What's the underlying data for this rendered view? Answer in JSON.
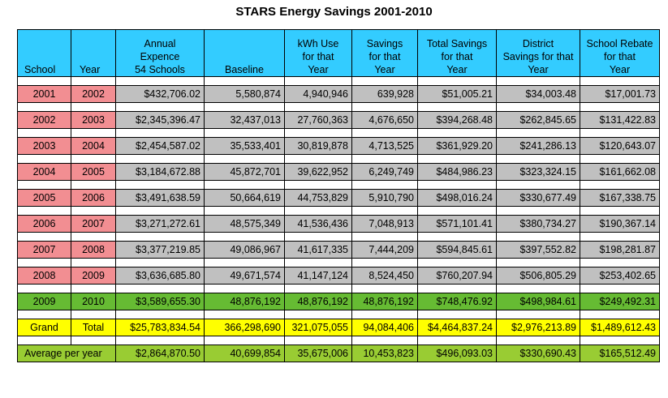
{
  "title": "STARS Energy Savings 2001-2010",
  "headers": {
    "school": "School",
    "year": "Year",
    "annual": [
      "Annual",
      "Expence",
      "54 Schools"
    ],
    "baseline": "Baseline",
    "kwh": [
      "kWh Use",
      "for that",
      "Year"
    ],
    "savings": [
      "Savings",
      "for that",
      "Year"
    ],
    "total": [
      "Total Savings",
      "for that",
      "Year"
    ],
    "district": [
      "District",
      "Savings for that",
      "Year"
    ],
    "rebate": [
      "School Rebate",
      "for that",
      "Year"
    ]
  },
  "rows": [
    {
      "school": "2001",
      "year": "2002",
      "annual": "$432,706.02",
      "baseline": "5,580,874",
      "kwh": "4,940,946",
      "savings": "639,928",
      "total": "$51,005.21",
      "district": "$34,003.48",
      "rebate": "$17,001.73"
    },
    {
      "school": "2002",
      "year": "2003",
      "annual": "$2,345,396.47",
      "baseline": "32,437,013",
      "kwh": "27,760,363",
      "savings": "4,676,650",
      "total": "$394,268.48",
      "district": "$262,845.65",
      "rebate": "$131,422.83"
    },
    {
      "school": "2003",
      "year": "2004",
      "annual": "$2,454,587.02",
      "baseline": "35,533,401",
      "kwh": "30,819,878",
      "savings": "4,713,525",
      "total": "$361,929.20",
      "district": "$241,286.13",
      "rebate": "$120,643.07"
    },
    {
      "school": "2004",
      "year": "2005",
      "annual": "$3,184,672.88",
      "baseline": "45,872,701",
      "kwh": "39,622,952",
      "savings": "6,249,749",
      "total": "$484,986.23",
      "district": "$323,324.15",
      "rebate": "$161,662.08"
    },
    {
      "school": "2005",
      "year": "2006",
      "annual": "$3,491,638.59",
      "baseline": "50,664,619",
      "kwh": "44,753,829",
      "savings": "5,910,790",
      "total": "$498,016.24",
      "district": "$330,677.49",
      "rebate": "$167,338.75"
    },
    {
      "school": "2006",
      "year": "2007",
      "annual": "$3,271,272.61",
      "baseline": "48,575,349",
      "kwh": "41,536,436",
      "savings": "7,048,913",
      "total": "$571,101.41",
      "district": "$380,734.27",
      "rebate": "$190,367.14"
    },
    {
      "school": "2007",
      "year": "2008",
      "annual": "$3,377,219.85",
      "baseline": "49,086,967",
      "kwh": "41,617,335",
      "savings": "7,444,209",
      "total": "$594,845.61",
      "district": "$397,552.82",
      "rebate": "$198,281.87"
    },
    {
      "school": "2008",
      "year": "2009",
      "annual": "$3,636,685.80",
      "baseline": "49,671,574",
      "kwh": "41,147,124",
      "savings": "8,524,450",
      "total": "$760,207.94",
      "district": "$506,805.29",
      "rebate": "$253,402.65"
    }
  ],
  "row_2009": {
    "school": "2009",
    "year": "2010",
    "annual": "$3,589,655.30",
    "baseline": "48,876,192",
    "kwh": "48,876,192",
    "savings": "48,876,192",
    "total": "$748,476.92",
    "district": "$498,984.61",
    "rebate": "$249,492.31"
  },
  "grand_total": {
    "label1": "Grand",
    "label2": "Total",
    "annual": "$25,783,834.54",
    "baseline": "366,298,690",
    "kwh": "321,075,055",
    "savings": "94,084,406",
    "total": "$4,464,837.24",
    "district": "$2,976,213.89",
    "rebate": "$1,489,612.43"
  },
  "average": {
    "label": "Average per year",
    "annual": "$2,864,870.50",
    "baseline": "40,699,854",
    "kwh": "35,675,006",
    "savings": "10,453,823",
    "total": "$496,093.03",
    "district": "$330,690.43",
    "rebate": "$165,512.49"
  }
}
